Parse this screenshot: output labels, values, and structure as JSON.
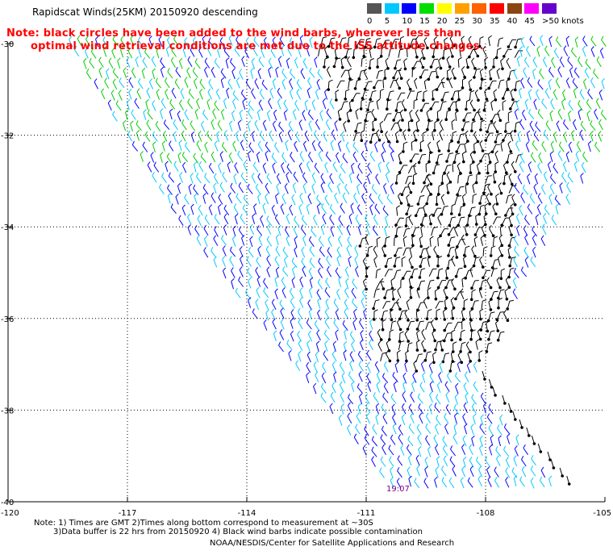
{
  "title": "Rapidscat Winds(25KM) 20150920 descending",
  "note": {
    "line1": "Note: black circles have been added to the wind barbs, wherever less than",
    "line2": "optimal wind retrieval conditions are met due to the ISS attitude changes."
  },
  "legend": {
    "labels": [
      "0",
      "5",
      "10",
      "15",
      "20",
      "25",
      "30",
      "35",
      "40",
      "45",
      ">50 knots"
    ],
    "colors": [
      "#555555",
      "#00c8ff",
      "#0000ff",
      "#00dd00",
      "#ffff00",
      "#ffa000",
      "#ff6000",
      "#ff0000",
      "#8b4513",
      "#ff00ff",
      "#6600cc"
    ]
  },
  "map": {
    "lat_labels": [
      "-30",
      "-32",
      "-34",
      "-36",
      "-38",
      "-40"
    ],
    "lon_labels": [
      "-120",
      "-117",
      "-114",
      "-111",
      "-108",
      "-105"
    ],
    "lat_values": [
      -30,
      -32,
      -34,
      -36,
      -38,
      -40
    ],
    "lon_values": [
      -120,
      -117,
      -114,
      -111,
      -108,
      -105
    ],
    "time_label": "19:07"
  },
  "footer": {
    "line1": "Note: 1) Times are GMT 2)Times along bottom correspond to measurement at ~30S",
    "line2": "3)Data buffer is 22 hrs from 20150920 4) Black wind barbs indicate possible contamination",
    "credit": "NOAA/NESDIS/Center for Satellite Applications and Research"
  }
}
